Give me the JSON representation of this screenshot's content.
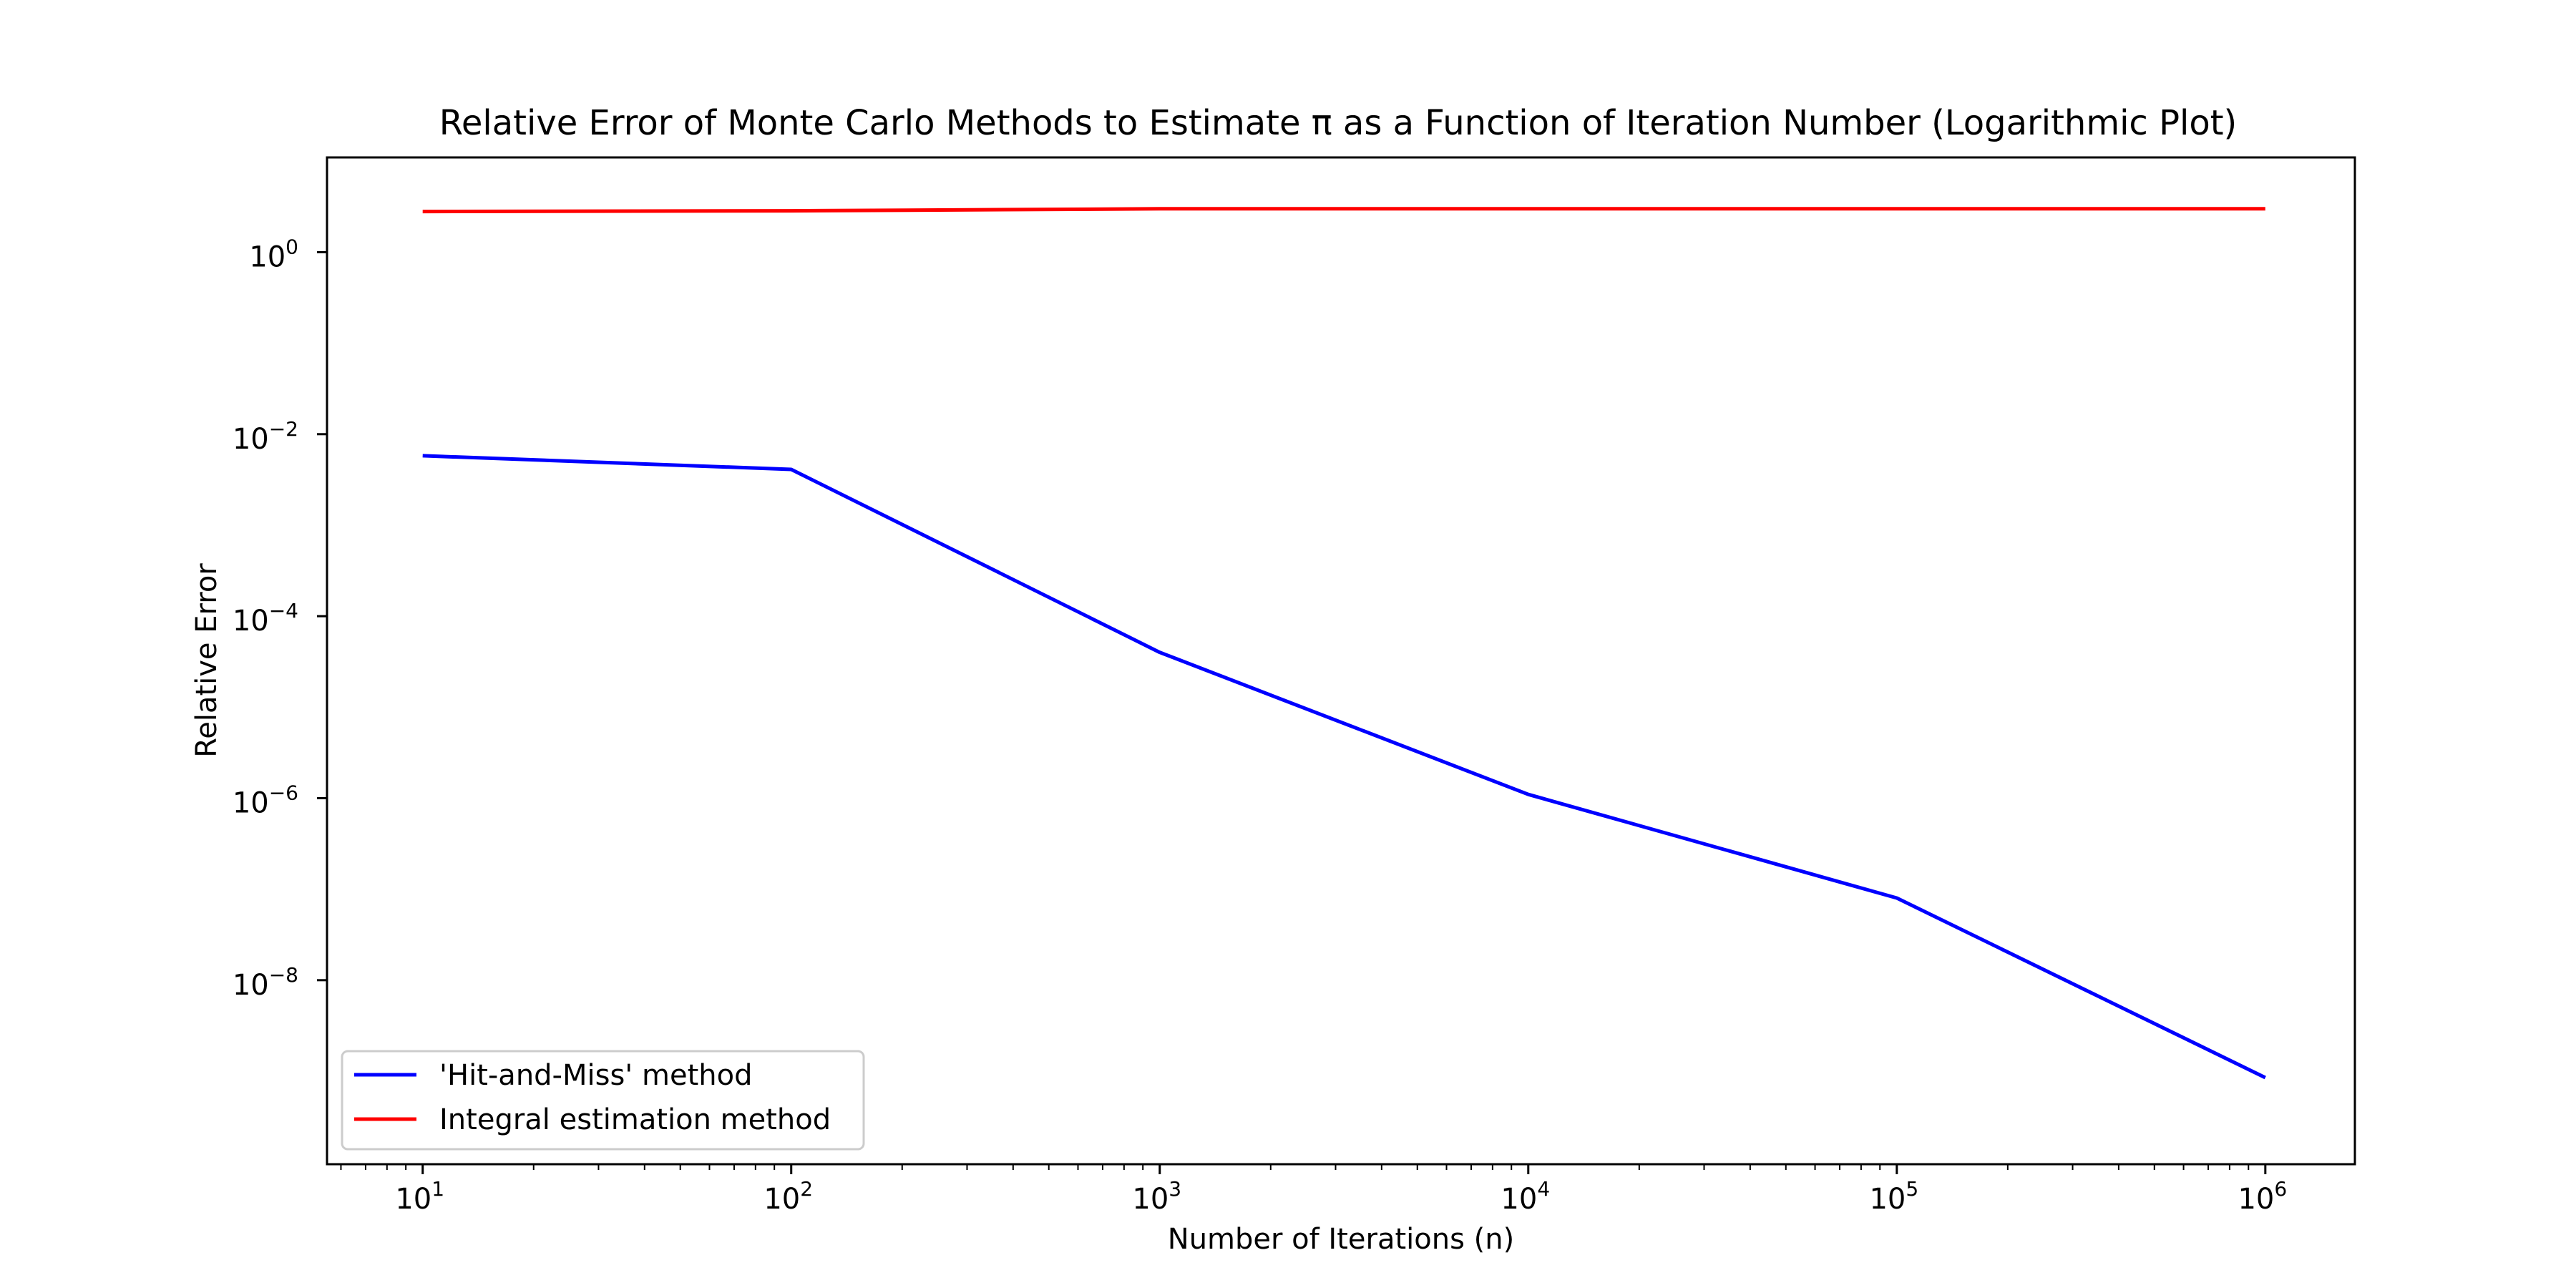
{
  "chart_data": {
    "type": "line",
    "title": "Relative Error of Monte Carlo Methods to Estimate π as a Function of Iteration Number (Logarithmic Plot)",
    "xlabel": "Number of Iterations (n)",
    "ylabel": "Relative Error",
    "x_scale": "log",
    "y_scale": "log",
    "xlim": [
      5.5,
      1750000
    ],
    "ylim": [
      9.5e-11,
      11
    ],
    "x_ticks": [
      {
        "value": 10,
        "base": "10",
        "exp": "1"
      },
      {
        "value": 100,
        "base": "10",
        "exp": "2"
      },
      {
        "value": 1000,
        "base": "10",
        "exp": "3"
      },
      {
        "value": 10000,
        "base": "10",
        "exp": "4"
      },
      {
        "value": 100000,
        "base": "10",
        "exp": "5"
      },
      {
        "value": 1000000,
        "base": "10",
        "exp": "6"
      }
    ],
    "y_ticks": [
      {
        "value": 1,
        "base": "10",
        "exp": "0"
      },
      {
        "value": 0.01,
        "base": "10",
        "exp": "−2"
      },
      {
        "value": 0.0001,
        "base": "10",
        "exp": "−4"
      },
      {
        "value": 1e-06,
        "base": "10",
        "exp": "−6"
      },
      {
        "value": 1e-08,
        "base": "10",
        "exp": "−8"
      }
    ],
    "grid": false,
    "legend_position": "bottom-left",
    "x": [
      10,
      100,
      1000,
      10000,
      100000,
      1000000
    ],
    "series": [
      {
        "name": "'Hit-and-Miss' method",
        "color": "#0000ff",
        "values": [
          0.0058,
          0.0041,
          4e-05,
          1.1e-06,
          8e-08,
          8.5e-10
        ]
      },
      {
        "name": "Integral estimation method",
        "color": "#ff0000",
        "values": [
          2.8,
          2.85,
          3.0,
          3.0,
          3.0,
          3.0
        ]
      }
    ]
  }
}
